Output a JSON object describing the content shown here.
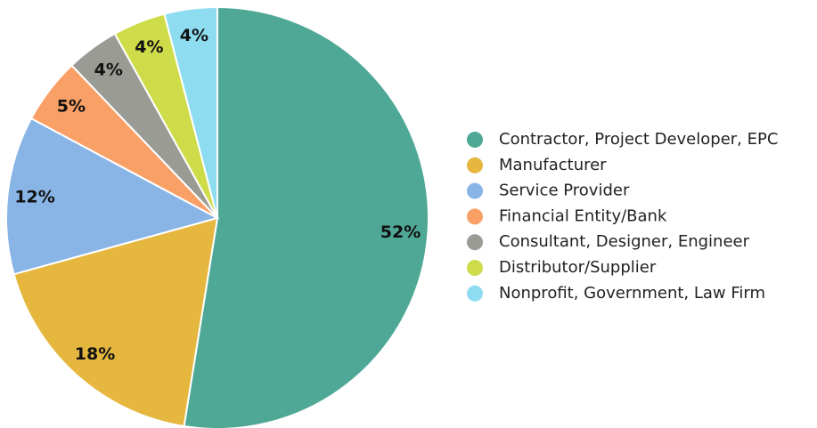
{
  "chart_data": {
    "type": "pie",
    "categories": [
      "Contractor, Project Developer, EPC",
      "Manufacturer",
      "Service Provider",
      "Financial Entity/Bank",
      "Consultant, Designer, Engineer",
      "Distributor/Supplier",
      "Nonprofit, Government, Law Firm"
    ],
    "values": [
      52,
      18,
      12,
      5,
      4,
      4,
      4
    ],
    "value_labels": [
      "52%",
      "18%",
      "12%",
      "5%",
      "4%",
      "4%",
      "4%"
    ],
    "colors": [
      "#4fa896",
      "#e5b73f",
      "#88b4e6",
      "#f9a066",
      "#9b9b95",
      "#cfdc4a",
      "#8edcf0"
    ],
    "legend": "right"
  }
}
